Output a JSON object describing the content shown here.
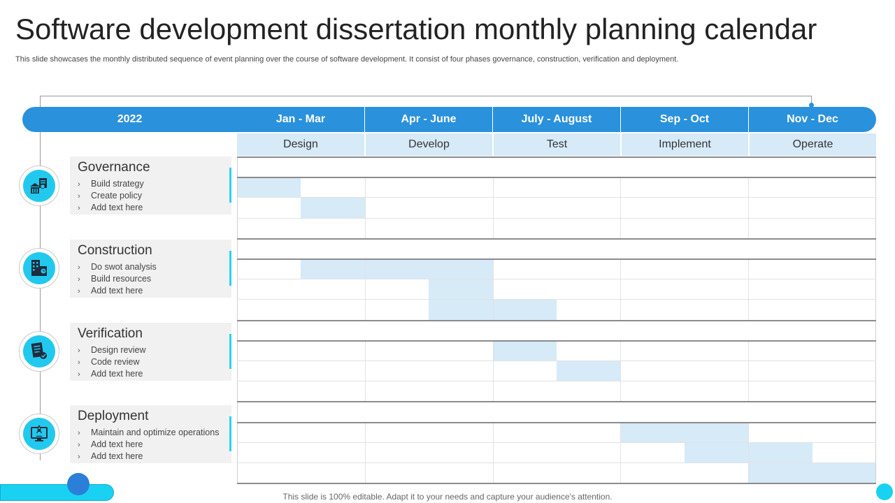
{
  "title": "Software development dissertation monthly planning calendar",
  "subtitle": "This slide showcases the monthly distributed sequence of event planning over the course of software development. It consist of four phases governance, construction, verification and deployment.",
  "header": {
    "year": "2022",
    "periods": [
      "Jan - Mar",
      "Apr - June",
      "July - August",
      "Sep - Oct",
      "Nov - Dec"
    ]
  },
  "phases": [
    "Design",
    "Develop",
    "Test",
    "Implement",
    "Operate"
  ],
  "stages": [
    {
      "title": "Governance",
      "icon": "government-building-icon",
      "items": [
        "Build strategy",
        "Create policy",
        "Add text here"
      ]
    },
    {
      "title": "Construction",
      "icon": "office-buildings-icon",
      "items": [
        "Do swot analysis",
        "Build resources",
        "Add text here"
      ]
    },
    {
      "title": "Verification",
      "icon": "checked-document-icon",
      "items": [
        "Design review",
        "Code review",
        "Add text here"
      ]
    },
    {
      "title": "Deployment",
      "icon": "rocket-monitor-icon",
      "items": [
        "Maintain and optimize operations",
        "Add text here",
        "Add text here"
      ]
    }
  ],
  "schedule": [
    {
      "stage": "Governance",
      "item": "Build strategy",
      "start_half_period": 0,
      "end_half_period": 1
    },
    {
      "stage": "Governance",
      "item": "Create policy",
      "start_half_period": 1,
      "end_half_period": 2
    },
    {
      "stage": "Construction",
      "item": "Do swot analysis",
      "start_half_period": 1,
      "end_half_period": 4
    },
    {
      "stage": "Construction",
      "item": "Build resources",
      "start_half_period": 3,
      "end_half_period": 4
    },
    {
      "stage": "Construction",
      "item": "Add text here",
      "start_half_period": 3,
      "end_half_period": 5
    },
    {
      "stage": "Verification",
      "item": "Design review",
      "start_half_period": 4,
      "end_half_period": 5
    },
    {
      "stage": "Verification",
      "item": "Code review",
      "start_half_period": 5,
      "end_half_period": 6
    },
    {
      "stage": "Deployment",
      "item": "Maintain and optimize operations",
      "start_half_period": 6,
      "end_half_period": 8
    },
    {
      "stage": "Deployment",
      "item": "Add text here",
      "start_half_period": 7,
      "end_half_period": 9
    },
    {
      "stage": "Deployment",
      "item": "Add text here",
      "start_half_period": 8,
      "end_half_period": 10
    }
  ],
  "colors": {
    "header": "#2a91dc",
    "phase_fill": "#d6eaf8",
    "accent": "#22c9ee",
    "bar": "#d6eaf8"
  },
  "footer": "This slide is 100% editable. Adapt it to your needs and capture your audience's attention."
}
